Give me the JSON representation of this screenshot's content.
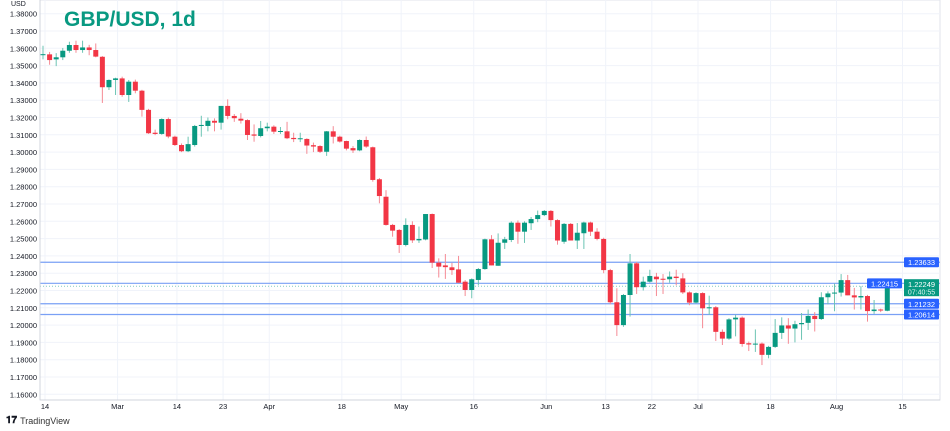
{
  "chart_data": {
    "type": "candlestick",
    "title": "GBP/USD, 1d",
    "currency_label": "USD",
    "ylim": [
      1.16,
      1.38
    ],
    "y_ticks": [
      "1.16000",
      "1.17000",
      "1.18000",
      "1.19000",
      "1.20000",
      "1.21000",
      "1.22000",
      "1.23000",
      "1.24000",
      "1.25000",
      "1.26000",
      "1.27000",
      "1.28000",
      "1.29000",
      "1.30000",
      "1.31000",
      "1.32000",
      "1.33000",
      "1.34000",
      "1.35000",
      "1.36000",
      "1.37000",
      "1.38000"
    ],
    "x_ticks": [
      {
        "label": "14",
        "index": 1
      },
      {
        "label": "Mar",
        "index": 12
      },
      {
        "label": "14",
        "index": 21
      },
      {
        "label": "23",
        "index": 28
      },
      {
        "label": "Apr",
        "index": 35
      },
      {
        "label": "18",
        "index": 46
      },
      {
        "label": "May",
        "index": 55
      },
      {
        "label": "16",
        "index": 66
      },
      {
        "label": "Jun",
        "index": 77
      },
      {
        "label": "13",
        "index": 86
      },
      {
        "label": "22",
        "index": 93
      },
      {
        "label": "Jul",
        "index": 100
      },
      {
        "label": "18",
        "index": 111
      },
      {
        "label": "Aug",
        "index": 121
      },
      {
        "label": "15",
        "index": 131
      }
    ],
    "grid": true,
    "up_color": "#089981",
    "down_color": "#f23645",
    "level_color": "#2962ff",
    "levels": [
      "1.23633",
      "1.22415",
      "1.21232",
      "1.20614"
    ],
    "last_price": {
      "value": "1.22249",
      "countdown": "07:40:55"
    },
    "candles_ohlc": [
      [
        1.3562,
        1.3615,
        1.3536,
        1.3566
      ],
      [
        1.3565,
        1.3579,
        1.3505,
        1.3532
      ],
      [
        1.3536,
        1.3572,
        1.3497,
        1.3548
      ],
      [
        1.3548,
        1.3602,
        1.3532,
        1.3586
      ],
      [
        1.3586,
        1.3638,
        1.3574,
        1.3619
      ],
      [
        1.3619,
        1.3644,
        1.3574,
        1.359
      ],
      [
        1.359,
        1.3644,
        1.3574,
        1.3605
      ],
      [
        1.3605,
        1.362,
        1.356,
        1.359
      ],
      [
        1.359,
        1.3628,
        1.3548,
        1.3552
      ],
      [
        1.3551,
        1.3555,
        1.3284,
        1.3375
      ],
      [
        1.3375,
        1.342,
        1.3359,
        1.3417
      ],
      [
        1.3417,
        1.343,
        1.333,
        1.3426
      ],
      [
        1.3426,
        1.3436,
        1.332,
        1.333
      ],
      [
        1.333,
        1.3417,
        1.329,
        1.3407
      ],
      [
        1.3407,
        1.3419,
        1.334,
        1.3355
      ],
      [
        1.3355,
        1.336,
        1.3205,
        1.3244
      ],
      [
        1.3244,
        1.325,
        1.3105,
        1.3109
      ],
      [
        1.3112,
        1.313,
        1.3098,
        1.3105
      ],
      [
        1.3105,
        1.3195,
        1.31,
        1.3191
      ],
      [
        1.3191,
        1.32,
        1.308,
        1.309
      ],
      [
        1.3089,
        1.3095,
        1.3035,
        1.3041
      ],
      [
        1.3041,
        1.305,
        1.3,
        1.3005
      ],
      [
        1.3005,
        1.3089,
        1.3,
        1.3046
      ],
      [
        1.3041,
        1.3157,
        1.3032,
        1.3151
      ],
      [
        1.3151,
        1.321,
        1.3089,
        1.3157
      ],
      [
        1.3151,
        1.32,
        1.312,
        1.3181
      ],
      [
        1.3181,
        1.3195,
        1.312,
        1.317
      ],
      [
        1.317,
        1.3267,
        1.313,
        1.3267
      ],
      [
        1.3267,
        1.3305,
        1.319,
        1.3209
      ],
      [
        1.3209,
        1.322,
        1.3175,
        1.3196
      ],
      [
        1.3193,
        1.3225,
        1.3165,
        1.3182
      ],
      [
        1.3185,
        1.319,
        1.307,
        1.3099
      ],
      [
        1.3102,
        1.316,
        1.306,
        1.3095
      ],
      [
        1.3093,
        1.318,
        1.3085,
        1.3138
      ],
      [
        1.3138,
        1.317,
        1.312,
        1.3147
      ],
      [
        1.3147,
        1.3155,
        1.3105,
        1.3118
      ],
      [
        1.3118,
        1.3145,
        1.3105,
        1.3122
      ],
      [
        1.312,
        1.3175,
        1.3075,
        1.308
      ],
      [
        1.3082,
        1.3112,
        1.3058,
        1.3075
      ],
      [
        1.3075,
        1.3112,
        1.3058,
        1.308
      ],
      [
        1.3076,
        1.308,
        1.299,
        1.3038
      ],
      [
        1.304,
        1.3055,
        1.3,
        1.3032
      ],
      [
        1.3035,
        1.304,
        1.2995,
        1.3002
      ],
      [
        1.3002,
        1.3122,
        1.2978,
        1.312
      ],
      [
        1.312,
        1.315,
        1.305,
        1.3089
      ],
      [
        1.3089,
        1.3095,
        1.3055,
        1.3061
      ],
      [
        1.3064,
        1.3066,
        1.301,
        1.302
      ],
      [
        1.3023,
        1.3035,
        1.2995,
        1.301
      ],
      [
        1.301,
        1.3074,
        1.3005,
        1.307
      ],
      [
        1.307,
        1.309,
        1.3025,
        1.3032
      ],
      [
        1.3028,
        1.3032,
        1.2829,
        1.2839
      ],
      [
        1.2843,
        1.285,
        1.2704,
        1.2746
      ],
      [
        1.2742,
        1.278,
        1.2575,
        1.2579
      ],
      [
        1.2579,
        1.2585,
        1.2511,
        1.2546
      ],
      [
        1.255,
        1.2555,
        1.2417,
        1.2463
      ],
      [
        1.2463,
        1.2617,
        1.2455,
        1.2579
      ],
      [
        1.2579,
        1.26,
        1.2475,
        1.249
      ],
      [
        1.249,
        1.257,
        1.2475,
        1.2498
      ],
      [
        1.2495,
        1.2642,
        1.249,
        1.2642
      ],
      [
        1.2642,
        1.2645,
        1.233,
        1.2361
      ],
      [
        1.2361,
        1.2386,
        1.2275,
        1.2338
      ],
      [
        1.2345,
        1.2411,
        1.2267,
        1.2335
      ],
      [
        1.2334,
        1.236,
        1.229,
        1.2318
      ],
      [
        1.2322,
        1.24,
        1.2245,
        1.2245
      ],
      [
        1.2251,
        1.226,
        1.2168,
        1.2203
      ],
      [
        1.2203,
        1.227,
        1.2155,
        1.2265
      ],
      [
        1.2261,
        1.233,
        1.223,
        1.2324
      ],
      [
        1.2324,
        1.25,
        1.232,
        1.2496
      ],
      [
        1.2496,
        1.252,
        1.2345,
        1.2345
      ],
      [
        1.2343,
        1.253,
        1.2343,
        1.2476
      ],
      [
        1.2476,
        1.251,
        1.244,
        1.2496
      ],
      [
        1.2492,
        1.26,
        1.248,
        1.2592
      ],
      [
        1.2592,
        1.2605,
        1.247,
        1.254
      ],
      [
        1.254,
        1.26,
        1.2475,
        1.2592
      ],
      [
        1.2589,
        1.2625,
        1.255,
        1.2613
      ],
      [
        1.2613,
        1.2662,
        1.2595,
        1.2636
      ],
      [
        1.2636,
        1.2665,
        1.263,
        1.266
      ],
      [
        1.266,
        1.2665,
        1.257,
        1.2607
      ],
      [
        1.2607,
        1.2612,
        1.2465,
        1.2489
      ],
      [
        1.2482,
        1.259,
        1.247,
        1.2585
      ],
      [
        1.2585,
        1.259,
        1.2489,
        1.2489
      ],
      [
        1.2489,
        1.259,
        1.244,
        1.2534
      ],
      [
        1.2531,
        1.2598,
        1.244,
        1.2593
      ],
      [
        1.2593,
        1.2598,
        1.2515,
        1.254
      ],
      [
        1.254,
        1.256,
        1.249,
        1.2498
      ],
      [
        1.2498,
        1.2505,
        1.23,
        1.2318
      ],
      [
        1.2318,
        1.2325,
        1.212,
        1.2132
      ],
      [
        1.2132,
        1.2213,
        1.1937,
        1.2
      ],
      [
        1.2,
        1.218,
        1.199,
        1.2174
      ],
      [
        1.2174,
        1.2411,
        1.2049,
        1.2357
      ],
      [
        1.2357,
        1.2365,
        1.218,
        1.2219
      ],
      [
        1.2219,
        1.228,
        1.22,
        1.2251
      ],
      [
        1.2251,
        1.232,
        1.2245,
        1.2284
      ],
      [
        1.228,
        1.2302,
        1.2168,
        1.2265
      ],
      [
        1.2268,
        1.2295,
        1.218,
        1.2262
      ],
      [
        1.2265,
        1.231,
        1.2245,
        1.228
      ],
      [
        1.228,
        1.232,
        1.223,
        1.2272
      ],
      [
        1.227,
        1.23,
        1.218,
        1.2189
      ],
      [
        1.2189,
        1.2195,
        1.2115,
        1.213
      ],
      [
        1.213,
        1.219,
        1.2125,
        1.2185
      ],
      [
        1.2185,
        1.219,
        1.1982,
        1.2097
      ],
      [
        1.2097,
        1.217,
        1.206,
        1.2103
      ],
      [
        1.2103,
        1.211,
        1.1908,
        1.1961
      ],
      [
        1.1961,
        1.1975,
        1.1885,
        1.1922
      ],
      [
        1.1922,
        1.204,
        1.1915,
        1.2033
      ],
      [
        1.2033,
        1.206,
        1.1935,
        1.2043
      ],
      [
        1.2043,
        1.205,
        1.1875,
        1.1891
      ],
      [
        1.1895,
        1.1905,
        1.185,
        1.1888
      ],
      [
        1.1888,
        1.1975,
        1.1845,
        1.1893
      ],
      [
        1.1893,
        1.19,
        1.1769,
        1.1828
      ],
      [
        1.1828,
        1.188,
        1.1808,
        1.1874
      ],
      [
        1.1874,
        1.2035,
        1.1868,
        1.1955
      ],
      [
        1.1955,
        1.2045,
        1.192,
        1.1998
      ],
      [
        1.1998,
        1.204,
        1.1892,
        1.198
      ],
      [
        1.198,
        1.2025,
        1.19,
        1.2005
      ],
      [
        1.2005,
        1.207,
        1.1915,
        1.2012
      ],
      [
        1.2013,
        1.209,
        1.1972,
        1.2053
      ],
      [
        1.2053,
        1.2075,
        1.1963,
        1.2035
      ],
      [
        1.2035,
        1.219,
        1.203,
        1.2161
      ],
      [
        1.2161,
        1.2195,
        1.212,
        1.2183
      ],
      [
        1.2183,
        1.224,
        1.208,
        1.2188
      ],
      [
        1.2188,
        1.2295,
        1.2165,
        1.226
      ],
      [
        1.226,
        1.229,
        1.2172,
        1.2172
      ],
      [
        1.2172,
        1.2215,
        1.209,
        1.216
      ],
      [
        1.216,
        1.2225,
        1.209,
        1.2168
      ],
      [
        1.2168,
        1.2175,
        1.202,
        1.2081
      ],
      [
        1.2081,
        1.2145,
        1.2065,
        1.209
      ],
      [
        1.209,
        1.2095,
        1.2075,
        1.2085
      ],
      [
        1.2083,
        1.225,
        1.208,
        1.2225
      ]
    ]
  },
  "footer": {
    "brand": "TradingView"
  }
}
